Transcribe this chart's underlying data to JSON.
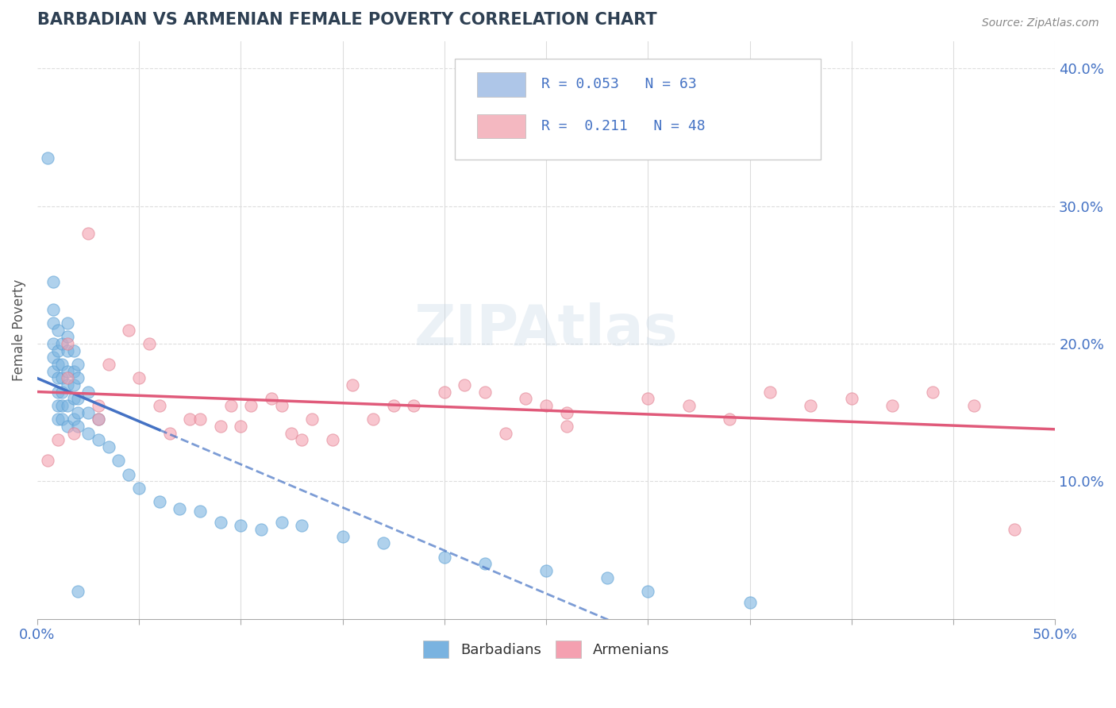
{
  "title": "BARBADIAN VS ARMENIAN FEMALE POVERTY CORRELATION CHART",
  "source_text": "Source: ZipAtlas.com",
  "ylabel": "Female Poverty",
  "xlim": [
    0.0,
    0.5
  ],
  "ylim": [
    0.0,
    0.42
  ],
  "xticks": [
    0.0,
    0.05,
    0.1,
    0.15,
    0.2,
    0.25,
    0.3,
    0.35,
    0.4,
    0.45,
    0.5
  ],
  "xticklabels": [
    "0.0%",
    "",
    "",
    "",
    "",
    "",
    "",
    "",
    "",
    "",
    "50.0%"
  ],
  "ytick_positions": [
    0.1,
    0.2,
    0.3,
    0.4
  ],
  "ytick_labels": [
    "10.0%",
    "20.0%",
    "30.0%",
    "40.0%"
  ],
  "legend_entries": [
    {
      "label": "R = 0.053   N = 63",
      "color": "#aec6e8"
    },
    {
      "label": "R =  0.211   N = 48",
      "color": "#f4b8c1"
    }
  ],
  "bottom_legend": [
    "Barbadians",
    "Armenians"
  ],
  "barbadian_color": "#7ab3e0",
  "armenian_color": "#f4a0b0",
  "barbadian_line_color": "#4472c4",
  "armenian_line_color": "#e05a7a",
  "watermark": "ZIPAtlas",
  "barbadian_x": [
    0.005,
    0.008,
    0.008,
    0.008,
    0.008,
    0.008,
    0.008,
    0.01,
    0.01,
    0.01,
    0.01,
    0.01,
    0.01,
    0.01,
    0.012,
    0.012,
    0.012,
    0.012,
    0.012,
    0.012,
    0.015,
    0.015,
    0.015,
    0.015,
    0.015,
    0.015,
    0.015,
    0.018,
    0.018,
    0.018,
    0.018,
    0.018,
    0.02,
    0.02,
    0.02,
    0.02,
    0.02,
    0.025,
    0.025,
    0.025,
    0.03,
    0.03,
    0.035,
    0.04,
    0.045,
    0.05,
    0.06,
    0.07,
    0.08,
    0.09,
    0.1,
    0.11,
    0.12,
    0.13,
    0.15,
    0.17,
    0.2,
    0.22,
    0.25,
    0.28,
    0.3,
    0.35,
    0.02
  ],
  "barbadian_y": [
    0.335,
    0.245,
    0.225,
    0.215,
    0.2,
    0.19,
    0.18,
    0.21,
    0.195,
    0.185,
    0.175,
    0.165,
    0.155,
    0.145,
    0.2,
    0.185,
    0.175,
    0.165,
    0.155,
    0.145,
    0.215,
    0.205,
    0.195,
    0.18,
    0.17,
    0.155,
    0.14,
    0.195,
    0.18,
    0.17,
    0.16,
    0.145,
    0.185,
    0.175,
    0.16,
    0.15,
    0.14,
    0.165,
    0.15,
    0.135,
    0.145,
    0.13,
    0.125,
    0.115,
    0.105,
    0.095,
    0.085,
    0.08,
    0.078,
    0.07,
    0.068,
    0.065,
    0.07,
    0.068,
    0.06,
    0.055,
    0.045,
    0.04,
    0.035,
    0.03,
    0.02,
    0.012,
    0.02
  ],
  "armenian_x": [
    0.005,
    0.01,
    0.015,
    0.015,
    0.018,
    0.025,
    0.03,
    0.035,
    0.045,
    0.05,
    0.055,
    0.06,
    0.065,
    0.075,
    0.08,
    0.09,
    0.095,
    0.1,
    0.105,
    0.115,
    0.12,
    0.125,
    0.13,
    0.135,
    0.145,
    0.155,
    0.165,
    0.175,
    0.185,
    0.2,
    0.21,
    0.22,
    0.23,
    0.24,
    0.25,
    0.26,
    0.3,
    0.32,
    0.34,
    0.36,
    0.38,
    0.4,
    0.42,
    0.44,
    0.46,
    0.48,
    0.03,
    0.26
  ],
  "armenian_y": [
    0.115,
    0.13,
    0.2,
    0.175,
    0.135,
    0.28,
    0.145,
    0.185,
    0.21,
    0.175,
    0.2,
    0.155,
    0.135,
    0.145,
    0.145,
    0.14,
    0.155,
    0.14,
    0.155,
    0.16,
    0.155,
    0.135,
    0.13,
    0.145,
    0.13,
    0.17,
    0.145,
    0.155,
    0.155,
    0.165,
    0.17,
    0.165,
    0.135,
    0.16,
    0.155,
    0.14,
    0.16,
    0.155,
    0.145,
    0.165,
    0.155,
    0.16,
    0.155,
    0.165,
    0.155,
    0.065,
    0.155,
    0.15
  ],
  "title_color": "#2e4053",
  "grid_color": "#dddddd",
  "background_color": "#ffffff"
}
